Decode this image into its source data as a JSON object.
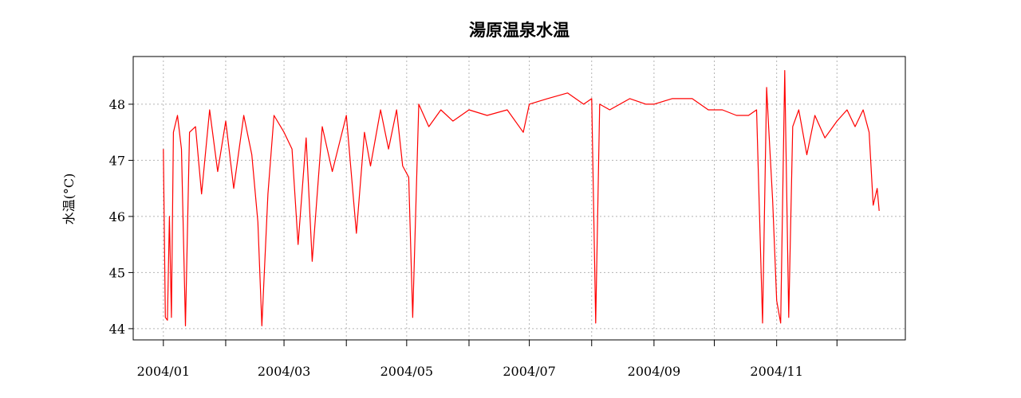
{
  "chart_data": {
    "type": "line",
    "title": "湯原温泉水温",
    "xlabel": "",
    "ylabel": "水温(°C)",
    "xlim": [
      "2003-12-17",
      "2005-01-04"
    ],
    "ylim": [
      43.8,
      48.85
    ],
    "y_ticks": [
      44,
      45,
      46,
      47,
      48
    ],
    "x_ticks": [
      "2004-01-01",
      "2004-02-01",
      "2004-03-01",
      "2004-04-01",
      "2004-05-01",
      "2004-06-01",
      "2004-07-01",
      "2004-08-01",
      "2004-09-01",
      "2004-10-01",
      "2004-11-01",
      "2004-12-01"
    ],
    "x_tick_labels": [
      "2004/01",
      "",
      "2004/03",
      "",
      "2004/05",
      "",
      "2004/07",
      "",
      "2004/09",
      "",
      "2004/11",
      ""
    ],
    "grid": true,
    "series": [
      {
        "color": "#ff0000",
        "x": [
          "2004-01-01",
          "2004-01-02",
          "2004-01-03",
          "2004-01-04",
          "2004-01-05",
          "2004-01-06",
          "2004-01-08",
          "2004-01-10",
          "2004-01-12",
          "2004-01-14",
          "2004-01-17",
          "2004-01-20",
          "2004-01-24",
          "2004-01-28",
          "2004-02-01",
          "2004-02-05",
          "2004-02-10",
          "2004-02-14",
          "2004-02-17",
          "2004-02-19",
          "2004-02-22",
          "2004-02-25",
          "2004-03-01",
          "2004-03-05",
          "2004-03-08",
          "2004-03-12",
          "2004-03-15",
          "2004-03-20",
          "2004-03-25",
          "2004-04-01",
          "2004-04-06",
          "2004-04-10",
          "2004-04-13",
          "2004-04-18",
          "2004-04-22",
          "2004-04-26",
          "2004-04-29",
          "2004-05-02",
          "2004-05-04",
          "2004-05-07",
          "2004-05-12",
          "2004-05-18",
          "2004-05-24",
          "2004-06-01",
          "2004-06-10",
          "2004-06-20",
          "2004-06-28",
          "2004-07-01",
          "2004-07-10",
          "2004-07-20",
          "2004-07-28",
          "2004-08-01",
          "2004-08-03",
          "2004-08-05",
          "2004-08-10",
          "2004-08-20",
          "2004-08-28",
          "2004-09-01",
          "2004-09-10",
          "2004-09-20",
          "2004-09-28",
          "2004-10-05",
          "2004-10-12",
          "2004-10-18",
          "2004-10-22",
          "2004-10-25",
          "2004-10-27",
          "2004-10-28",
          "2004-10-30",
          "2004-11-01",
          "2004-11-03",
          "2004-11-05",
          "2004-11-07",
          "2004-11-09",
          "2004-11-12",
          "2004-11-16",
          "2004-11-20",
          "2004-11-25",
          "2004-12-01",
          "2004-12-06",
          "2004-12-10",
          "2004-12-14",
          "2004-12-17",
          "2004-12-19",
          "2004-12-21",
          "2004-12-22"
        ],
        "y": [
          47.2,
          44.2,
          44.15,
          46.0,
          44.2,
          47.5,
          47.8,
          47.2,
          44.05,
          47.5,
          47.6,
          46.4,
          47.9,
          46.8,
          47.7,
          46.5,
          47.8,
          47.1,
          45.9,
          44.05,
          46.4,
          47.8,
          47.5,
          47.2,
          45.5,
          47.4,
          45.2,
          47.6,
          46.8,
          47.8,
          45.7,
          47.5,
          46.9,
          47.9,
          47.2,
          47.9,
          46.9,
          46.7,
          44.2,
          48.0,
          47.6,
          47.9,
          47.7,
          47.9,
          47.8,
          47.9,
          47.5,
          48.0,
          48.1,
          48.2,
          48.0,
          48.1,
          44.1,
          48.0,
          47.9,
          48.1,
          48.0,
          48.0,
          48.1,
          48.1,
          47.9,
          47.9,
          47.8,
          47.8,
          47.9,
          44.1,
          48.3,
          47.6,
          46.3,
          44.5,
          44.1,
          48.6,
          44.2,
          47.6,
          47.9,
          47.1,
          47.8,
          47.4,
          47.7,
          47.9,
          47.6,
          47.9,
          47.5,
          46.2,
          46.5,
          46.1
        ]
      }
    ]
  }
}
